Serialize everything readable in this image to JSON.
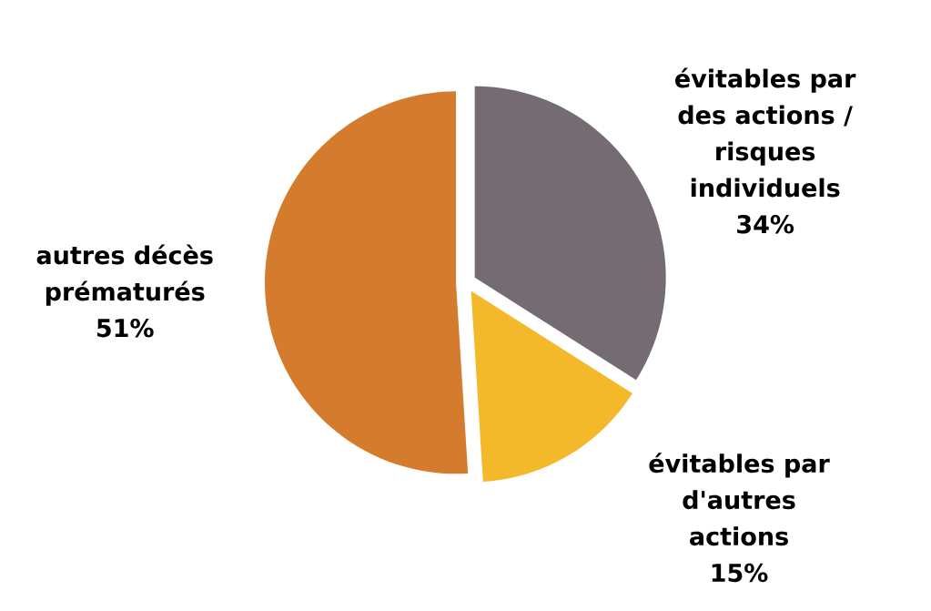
{
  "chart_data": {
    "type": "pie",
    "categories": [
      "évitables par des actions / risques individuels",
      "évitables par d'autres actions",
      "autres décès prématurés"
    ],
    "values": [
      34,
      15,
      51
    ],
    "value_labels": [
      "34%",
      "15%",
      "51%"
    ],
    "colors": [
      "#756b72",
      "#f4b92a",
      "#d57b2d"
    ]
  }
}
